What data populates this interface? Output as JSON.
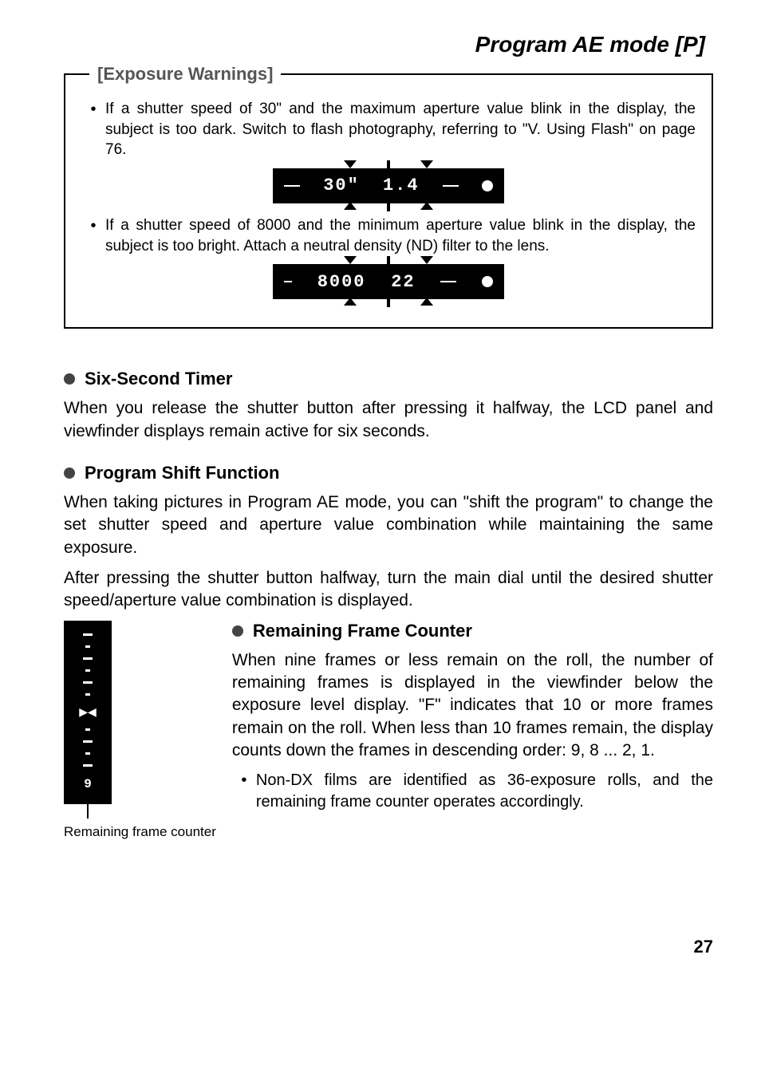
{
  "page_title": "Program AE mode [P]",
  "warnings": {
    "legend": "[Exposure Warnings]",
    "items": [
      {
        "text": "If a shutter speed of 30\" and the maximum aperture value blink in the display, the subject is too dark. Switch to flash photography, referring to \"V. Using Flash\" on page 76.",
        "lcd_left": "30\"",
        "lcd_right": "1.4"
      },
      {
        "text": "If a shutter speed of 8000 and the minimum aperture value blink in the display, the subject is too bright. Attach a neutral density (ND) filter to the lens.",
        "lcd_left": "8000",
        "lcd_right": "22"
      }
    ]
  },
  "sections": {
    "timer": {
      "heading": "Six-Second Timer",
      "body": "When you release the shutter button after pressing it halfway, the LCD panel and viewfinder displays remain active for six seconds."
    },
    "shift": {
      "heading": "Program Shift Function",
      "body1": "When taking pictures in Program AE mode, you can \"shift the program\" to change the set shutter speed and aperture value combination while maintaining the same exposure.",
      "body2": "After pressing the shutter button halfway, turn the main dial until the desired shutter speed/aperture value combination is displayed."
    },
    "counter": {
      "heading": "Remaining Frame Counter",
      "body": "When nine frames or less remain on the roll, the number of remaining frames is displayed in the viewfinder below the exposure level display. \"F\" indicates that 10 or more frames remain on the roll. When less than 10 frames remain, the display counts down the frames in descending order: 9, 8 ... 2, 1.",
      "note": "Non-DX films are identified as 36-exposure rolls, and the remaining frame counter operates accordingly.",
      "strip_value": "9",
      "caption": "Remaining frame counter"
    }
  },
  "page_number": "27"
}
